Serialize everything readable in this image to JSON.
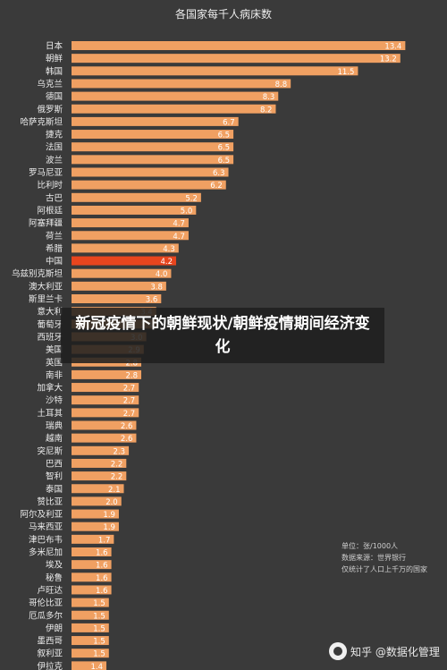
{
  "chart_data": {
    "type": "bar",
    "orientation": "horizontal",
    "title": "各国家每千人病床数",
    "categories": [
      "日本",
      "朝鲜",
      "韩国",
      "乌克兰",
      "德国",
      "俄罗斯",
      "哈萨克斯坦",
      "捷克",
      "法国",
      "波兰",
      "罗马尼亚",
      "比利时",
      "古巴",
      "阿根廷",
      "阿塞拜疆",
      "荷兰",
      "希腊",
      "中国",
      "乌兹别克斯坦",
      "澳大利亚",
      "斯里兰卡",
      "意大利",
      "葡萄牙",
      "西班牙",
      "美国",
      "英国",
      "南非",
      "加拿大",
      "沙特",
      "土耳其",
      "瑞典",
      "越南",
      "突尼斯",
      "巴西",
      "智利",
      "泰国",
      "赞比亚",
      "阿尔及利亚",
      "马来西亚",
      "津巴布韦",
      "多米尼加",
      "埃及",
      "秘鲁",
      "卢旺达",
      "哥伦比亚",
      "厄瓜多尔",
      "伊朗",
      "墨西哥",
      "叙利亚",
      "伊拉克"
    ],
    "values": [
      13.4,
      13.2,
      11.5,
      8.8,
      8.3,
      8.2,
      6.7,
      6.5,
      6.5,
      6.5,
      6.3,
      6.2,
      5.2,
      5.0,
      4.7,
      4.7,
      4.3,
      4.2,
      4.0,
      3.8,
      3.6,
      3.4,
      3.4,
      3.0,
      2.9,
      2.8,
      2.8,
      2.7,
      2.7,
      2.7,
      2.6,
      2.6,
      2.3,
      2.2,
      2.2,
      2.1,
      2.0,
      1.9,
      1.9,
      1.7,
      1.6,
      1.6,
      1.6,
      1.6,
      1.5,
      1.5,
      1.5,
      1.5,
      1.5,
      1.4
    ],
    "value_labels": [
      "13.4",
      "13.2",
      "11.5",
      "8.8",
      "8.3",
      "8.2",
      "6.7",
      "6.5",
      "6.5",
      "6.5",
      "6.3",
      "6.2",
      "5.2",
      "5.0",
      "4.7",
      "4.7",
      "4.3",
      "4.2",
      "4.0",
      "3.8",
      "3.6",
      "3.4",
      "3.4",
      "3.0",
      "2.9",
      "2.8",
      "2.8",
      "2.7",
      "2.7",
      "2.7",
      "2.6",
      "2.6",
      "2.3",
      "2.2",
      "2.2",
      "2.1",
      "2.0",
      "1.9",
      "1.9",
      "1.7",
      "1.6",
      "1.6",
      "1.6",
      "1.6",
      "1.5",
      "1.5",
      "1.5",
      "1.5",
      "1.5",
      "1.4"
    ],
    "highlight_category": "中国",
    "xlim": [
      0,
      14.5
    ],
    "grid": false,
    "colors": {
      "bar": "#f0a062",
      "highlight": "#e8451e",
      "background": "#3a3a3a",
      "label": "#ececec",
      "value_label": "#ffffff"
    }
  },
  "overlay": {
    "title": "新冠疫情下的朝鲜现状/朝鲜疫情期间经济变化"
  },
  "notes": {
    "unit": "单位：张/1000人",
    "source": "数据来源：世界银行",
    "scope": "仅统计了人口上千万的国家"
  },
  "watermark": {
    "text": "知乎 @数据化管理"
  }
}
